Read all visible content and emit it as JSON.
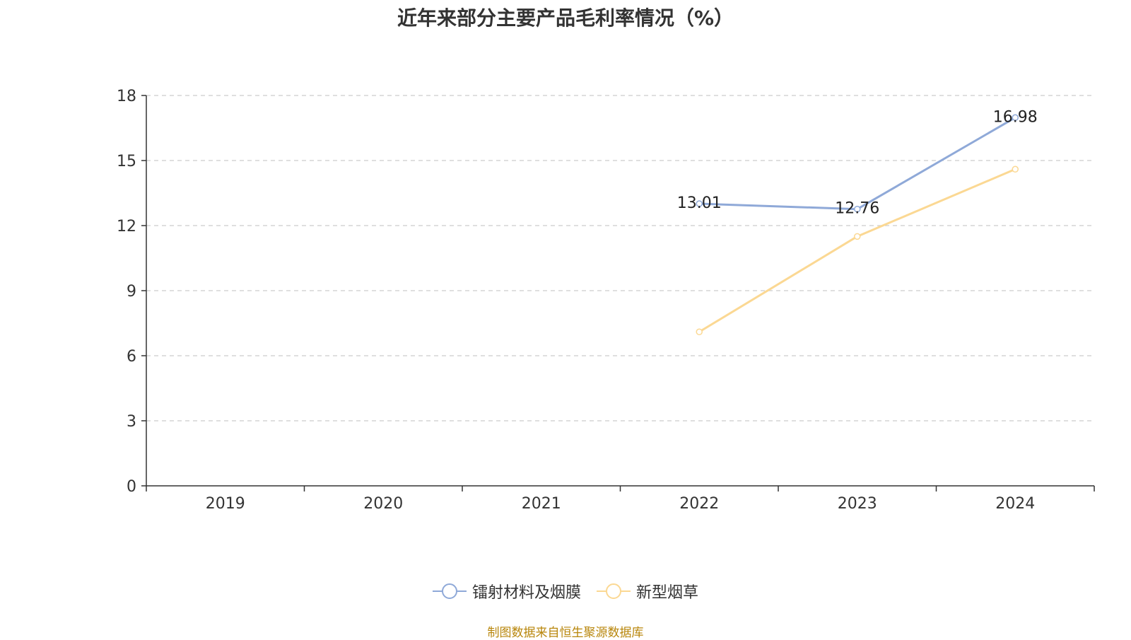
{
  "title": "近年来部分主要产品毛利率情况（%）",
  "source": "制图数据来自恒生聚源数据库",
  "legend": [
    "镭射材料及烟膜",
    "新型烟草"
  ],
  "chart_data": {
    "type": "line",
    "title": "近年来部分主要产品毛利率情况（%）",
    "categories": [
      "2019",
      "2020",
      "2021",
      "2022",
      "2023",
      "2024"
    ],
    "ylim": [
      0,
      18
    ],
    "yticks": [
      0,
      3,
      6,
      9,
      12,
      15,
      18
    ],
    "grid": true,
    "legend_position": "bottom",
    "series": [
      {
        "name": "镭射材料及烟膜",
        "color": "#8fa9d8",
        "values": [
          null,
          null,
          null,
          13.01,
          12.76,
          16.98
        ],
        "labels": [
          "",
          "",
          "",
          "13.01",
          "12.76",
          "16.98"
        ]
      },
      {
        "name": "新型烟草",
        "color": "#fbd893",
        "values": [
          null,
          null,
          null,
          7.1,
          11.5,
          14.6
        ],
        "labels": [
          "",
          "",
          "",
          "",
          "",
          ""
        ]
      }
    ]
  }
}
